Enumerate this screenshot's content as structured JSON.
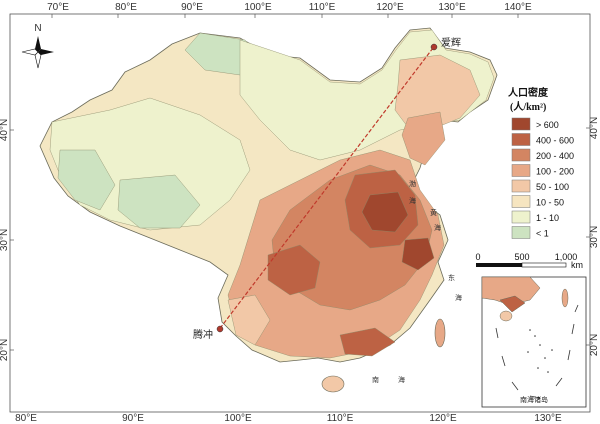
{
  "axes": {
    "top_lon_labels": [
      "70°E",
      "80°E",
      "90°E",
      "100°E",
      "110°E",
      "120°E",
      "130°E",
      "140°E"
    ],
    "bottom_lon_labels": [
      "80°E",
      "90°E",
      "100°E",
      "110°E",
      "120°E",
      "130°E"
    ],
    "left_lat_labels": [
      "40°N",
      "30°N",
      "20°N"
    ],
    "right_lat_labels": [
      "40°N",
      "30°N",
      "20°N"
    ]
  },
  "compass": {
    "north_label": "N",
    "icon": "north-arrow-icon"
  },
  "cities": {
    "aihui": "爱辉",
    "tengchong": "腾冲"
  },
  "seas": {
    "bohai_1": "渤",
    "bohai_2": "海",
    "huanghai_1": "黄",
    "huanghai_2": "海",
    "donghai_1": "东",
    "donghai_2": "海",
    "nanhai_1": "南",
    "nanhai_2": "海"
  },
  "legend": {
    "title_line1": "人口密度",
    "title_line2": "(人/km²)",
    "classes": [
      {
        "label": "> 600",
        "color": "#a0472e"
      },
      {
        "label": "400 - 600",
        "color": "#bd6244"
      },
      {
        "label": "200 - 400",
        "color": "#d38562"
      },
      {
        "label": "100 - 200",
        "color": "#e7a887"
      },
      {
        "label": "50 - 100",
        "color": "#f2c8a7"
      },
      {
        "label": "10 - 50",
        "color": "#f6e5c0"
      },
      {
        "label": "1 - 10",
        "color": "#eef2cd"
      },
      {
        "label": "< 1",
        "color": "#cde3c1"
      }
    ]
  },
  "scale_bar": {
    "labels": [
      "0",
      "500",
      "1,000"
    ],
    "unit": "km"
  },
  "inset": {
    "label": "南海诸岛"
  },
  "colors": {
    "hu_line": "#c0392b",
    "border": "#6b6b5a",
    "city_marker": "#b03a2e"
  }
}
